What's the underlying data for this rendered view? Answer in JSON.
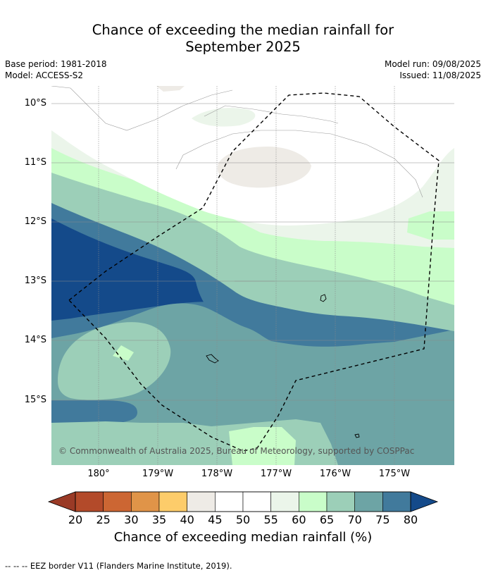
{
  "header": {
    "title_line1": "Chance of exceeding the median rainfall for",
    "title_line2": "September 2025",
    "base_period": "Base period: 1981-2018",
    "model": "Model: ACCESS-S2",
    "model_run": "Model run: 09/08/2025",
    "issued": "Issued: 11/08/2025"
  },
  "map": {
    "lat_labels": [
      "10°S",
      "11°S",
      "12°S",
      "13°S",
      "14°S",
      "15°S"
    ],
    "lon_labels": [
      "180°",
      "179°W",
      "178°W",
      "177°W",
      "176°W",
      "175°W"
    ],
    "copyright": "© Commonwealth of Australia 2025, Bureau of Meteorology, supported by COSPPac"
  },
  "colorbar": {
    "ticks": [
      "20",
      "25",
      "30",
      "35",
      "40",
      "45",
      "50",
      "55",
      "60",
      "65",
      "70",
      "75",
      "80"
    ],
    "colors": [
      "#b34a2a",
      "#cc6633",
      "#e09448",
      "#fdcc6a",
      "#eeebe6",
      "#ffffff",
      "#ffffff",
      "#ebf5ea",
      "#c9fdc9",
      "#9ccfb8",
      "#6da4a5",
      "#417a9c"
    ],
    "under_color": "#9a3a26",
    "over_color": "#144a8a",
    "label": "Chance of exceeding median rainfall (%)"
  },
  "footnote": "--  --  -- EEZ border V11 (Flanders Marine Institute, 2019)."
}
